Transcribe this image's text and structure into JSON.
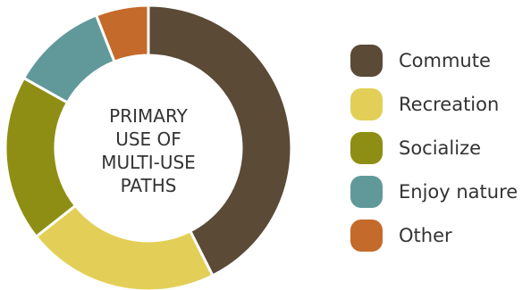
{
  "chart_data": {
    "type": "pie",
    "variant": "donut",
    "title": "PRIMARY USE OF MULTI-USE PATHS",
    "title_lines": [
      "PRIMARY",
      "USE OF",
      "MULTI-USE",
      "PATHS"
    ],
    "series": [
      {
        "name": "Commute",
        "value": 43,
        "color": "#5a4a36"
      },
      {
        "name": "Recreation",
        "value": 22,
        "color": "#e3cf57"
      },
      {
        "name": "Socialize",
        "value": 19,
        "color": "#8e8e14"
      },
      {
        "name": "Enjoy nature",
        "value": 11,
        "color": "#61999b"
      },
      {
        "name": "Other",
        "value": 6,
        "color": "#c46a2a"
      }
    ],
    "legend_position": "right"
  }
}
